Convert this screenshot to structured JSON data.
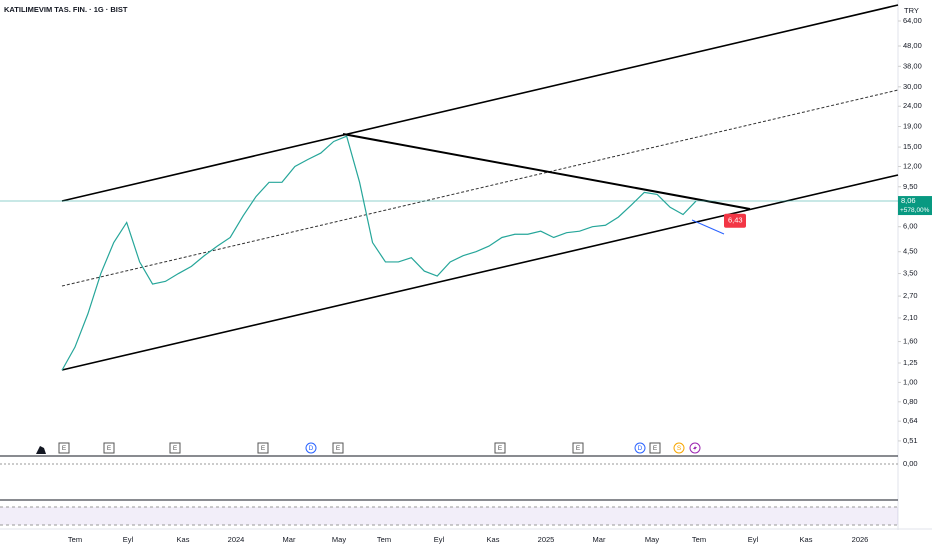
{
  "header": {
    "title": "KATILIMEVIM TAS. FIN. · 1G · BIST",
    "currency": "TRY"
  },
  "price_axis": {
    "ticks": [
      {
        "value": 64,
        "label": "64,00"
      },
      {
        "value": 48,
        "label": "48,00"
      },
      {
        "value": 38,
        "label": "38,00"
      },
      {
        "value": 30,
        "label": "30,00"
      },
      {
        "value": 24,
        "label": "24,00"
      },
      {
        "value": 19,
        "label": "19,00"
      },
      {
        "value": 15,
        "label": "15,00"
      },
      {
        "value": 12,
        "label": "12,00"
      },
      {
        "value": 9.5,
        "label": "9,50"
      },
      {
        "value": 6,
        "label": "6,00"
      },
      {
        "value": 4.5,
        "label": "4,50"
      },
      {
        "value": 3.5,
        "label": "3,50"
      },
      {
        "value": 2.7,
        "label": "2,70"
      },
      {
        "value": 2.1,
        "label": "2,10"
      },
      {
        "value": 1.6,
        "label": "1,60"
      },
      {
        "value": 1.25,
        "label": "1,25"
      },
      {
        "value": 1,
        "label": "1,00"
      },
      {
        "value": 0.8,
        "label": "0,80"
      },
      {
        "value": 0.64,
        "label": "0,64"
      },
      {
        "value": 0.51,
        "label": "0,51"
      }
    ],
    "last": {
      "value": 8.06,
      "label": "8,06"
    },
    "change": "+578,00%",
    "target": {
      "value": 6.43,
      "label": "6,43"
    }
  },
  "oscillator_axis": {
    "zero": "0,00"
  },
  "time_axis": {
    "labels": [
      "Tem",
      "Eyl",
      "Kas",
      "2024",
      "Mar",
      "May",
      "Tem",
      "Eyl",
      "Kas",
      "2025",
      "Mar",
      "May",
      "Tem",
      "Eyl",
      "Kas",
      "2026"
    ]
  },
  "events": [
    "E",
    "E",
    "E",
    "E",
    "D",
    "E",
    "E",
    "E",
    "D",
    "E",
    "S"
  ],
  "price": {
    "closes": [
      1.15,
      1.5,
      2.2,
      3.5,
      5.0,
      6.3,
      4.0,
      3.1,
      3.2,
      3.5,
      3.8,
      4.3,
      4.8,
      5.3,
      6.8,
      8.5,
      10,
      10,
      12,
      13,
      14,
      16,
      17,
      10,
      5.0,
      4.0,
      4.0,
      4.2,
      3.6,
      3.4,
      4.0,
      4.3,
      4.5,
      4.8,
      5.3,
      5.5,
      5.5,
      5.7,
      5.3,
      5.6,
      5.7,
      6.0,
      6.1,
      6.7,
      7.7,
      8.9,
      8.7,
      7.5,
      6.9,
      8.06
    ]
  }
}
